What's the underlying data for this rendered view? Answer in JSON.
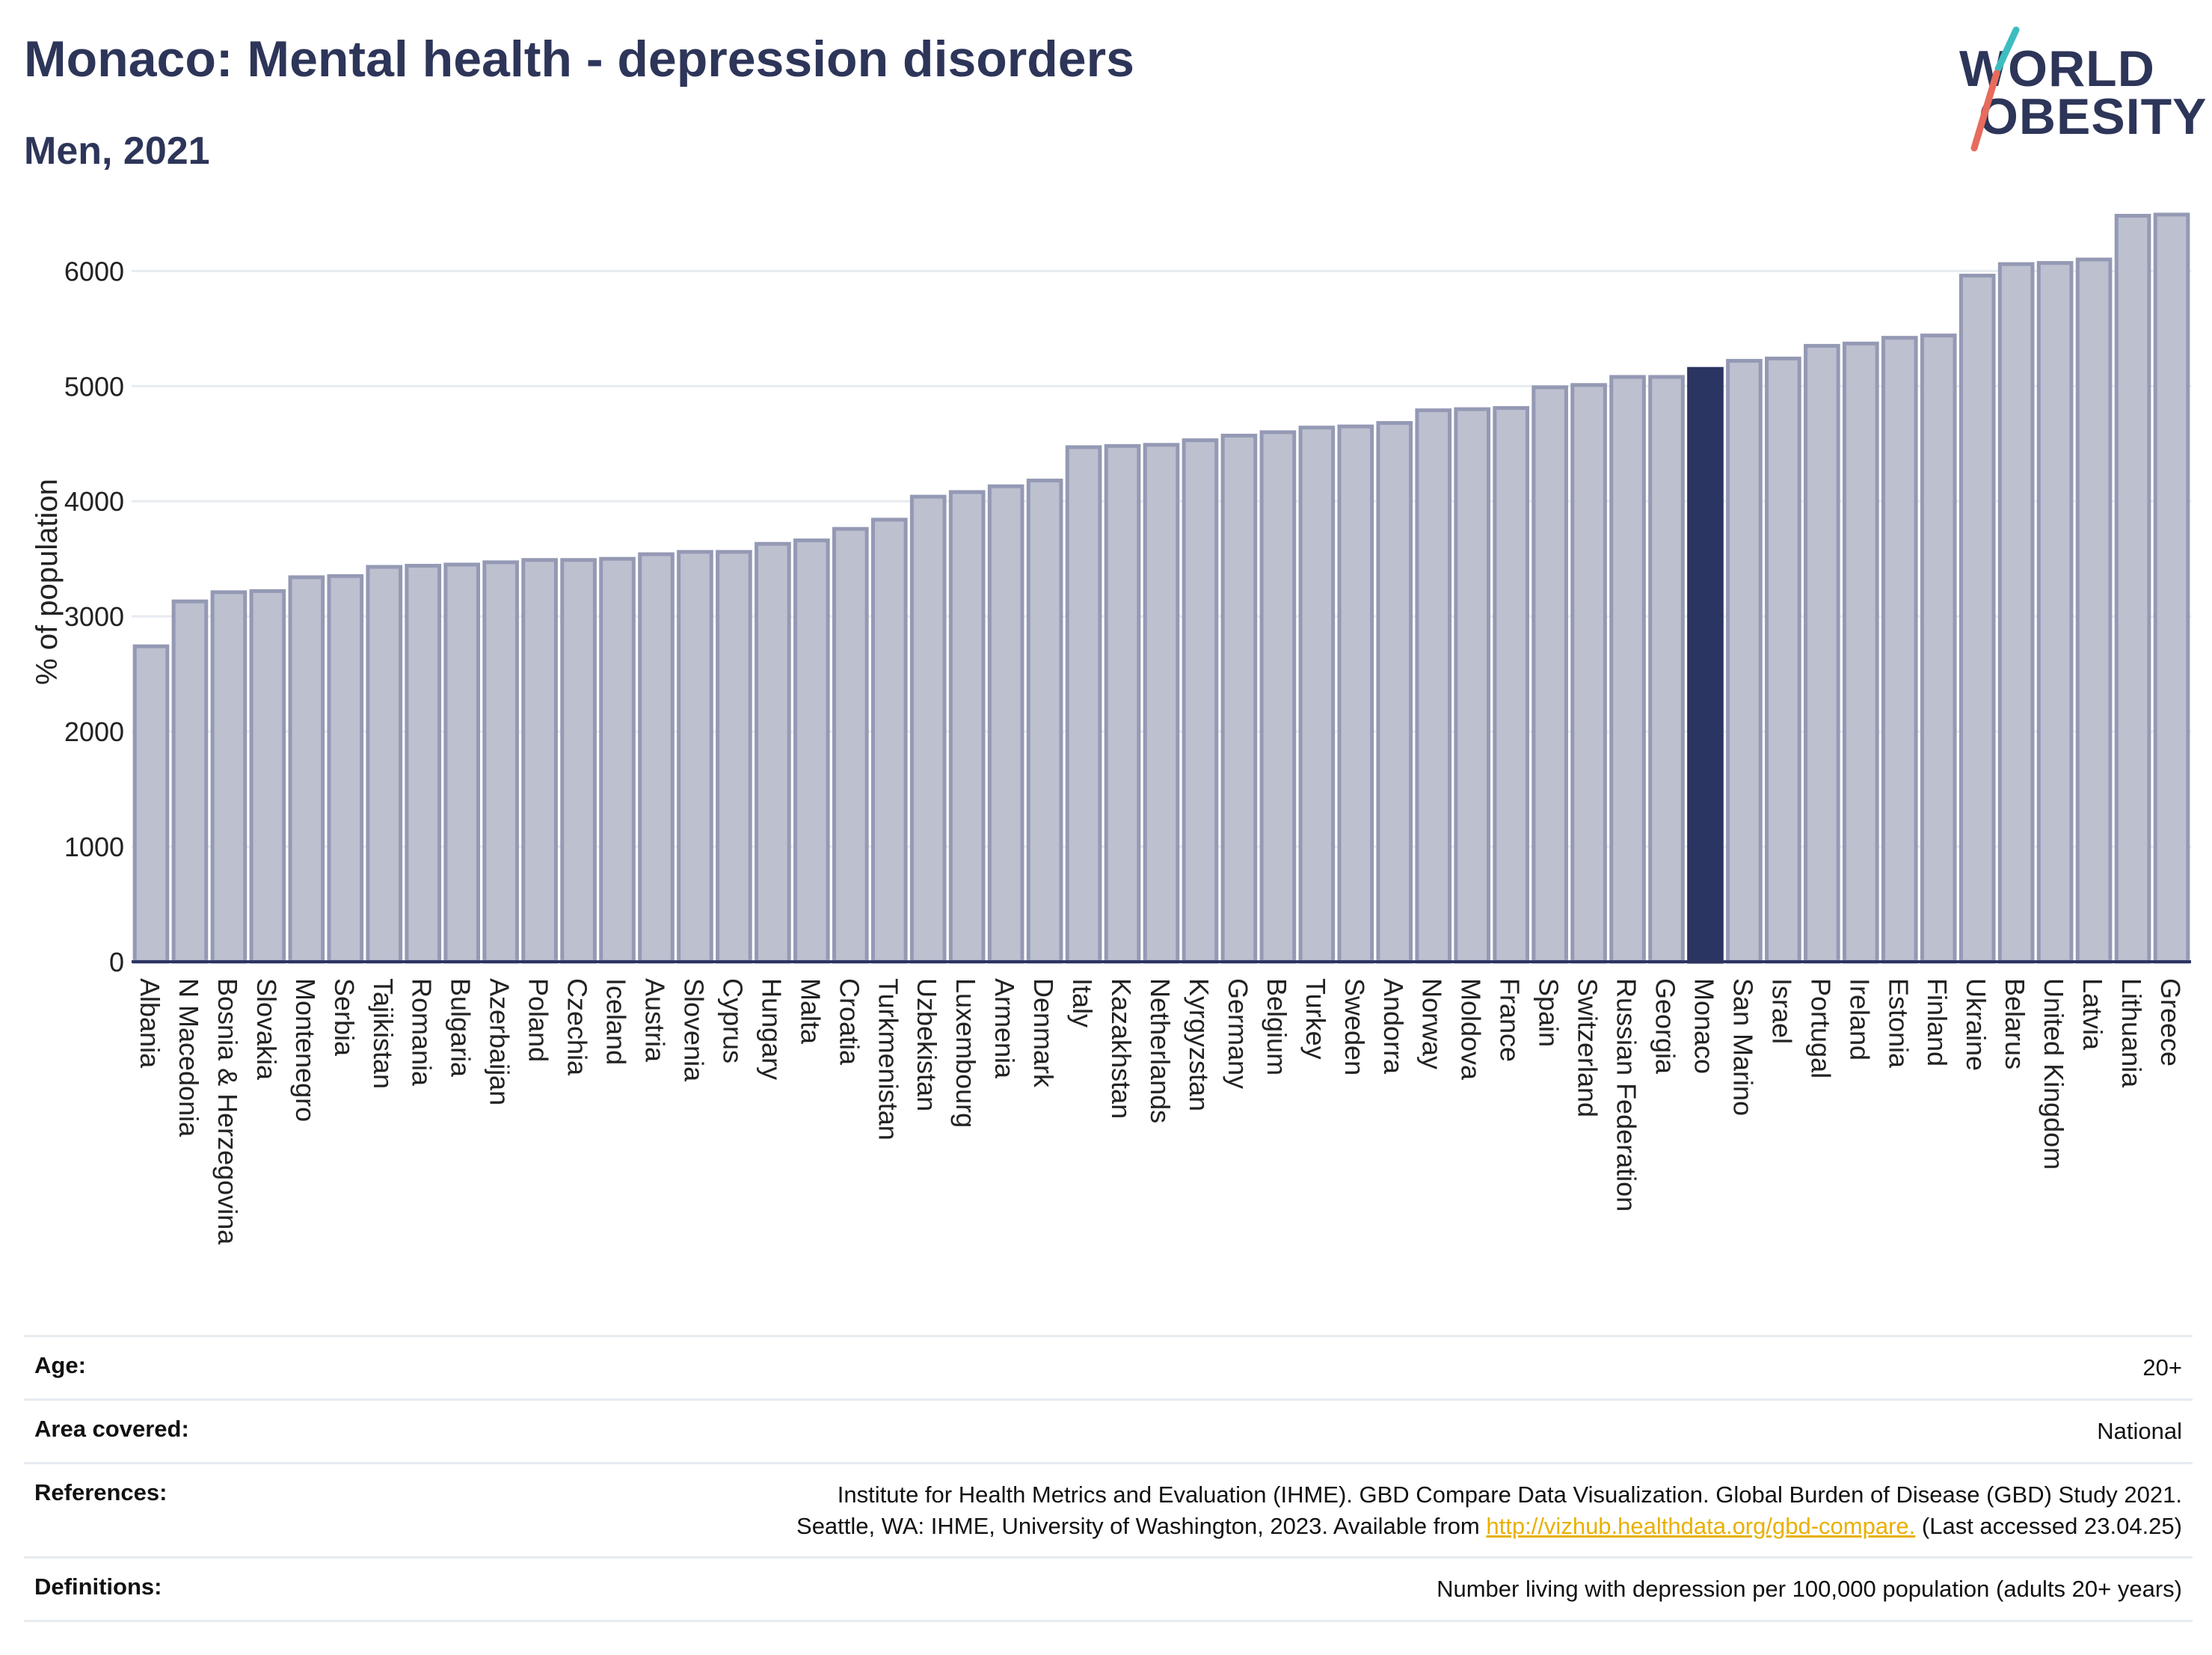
{
  "header": {
    "title": "Monaco: Mental health - depression disorders",
    "subtitle": "Men, 2021"
  },
  "logo": {
    "line1": "WORLD",
    "line2": "OBESITY"
  },
  "colors": {
    "bar": "#bcc0cf",
    "bar_stroke": "#9499b4",
    "highlight": "#2b3561",
    "grid": "#e6ebf0",
    "text": "#2d3559",
    "link": "#e8b000",
    "logo_teal": "#3dbdc0",
    "logo_coral": "#e86b5c"
  },
  "chart_data": {
    "type": "bar",
    "ylabel": "% of population",
    "xlabel": "",
    "ylim": [
      0,
      6600
    ],
    "yticks": [
      0,
      1000,
      2000,
      3000,
      4000,
      5000,
      6000
    ],
    "grid": true,
    "highlight": "Monaco",
    "categories": [
      "Albania",
      "N Macedonia",
      "Bosnia & Herzegovina",
      "Slovakia",
      "Montenegro",
      "Serbia",
      "Tajikistan",
      "Romania",
      "Bulgaria",
      "Azerbaijan",
      "Poland",
      "Czechia",
      "Iceland",
      "Austria",
      "Slovenia",
      "Cyprus",
      "Hungary",
      "Malta",
      "Croatia",
      "Turkmenistan",
      "Uzbekistan",
      "Luxembourg",
      "Armenia",
      "Denmark",
      "Italy",
      "Kazakhstan",
      "Netherlands",
      "Kyrgyzstan",
      "Germany",
      "Belgium",
      "Turkey",
      "Sweden",
      "Andorra",
      "Norway",
      "Moldova",
      "France",
      "Spain",
      "Switzerland",
      "Russian Federation",
      "Georgia",
      "Monaco",
      "San Marino",
      "Israel",
      "Portugal",
      "Ireland",
      "Estonia",
      "Finland",
      "Ukraine",
      "Belarus",
      "United Kingdom",
      "Latvia",
      "Lithuania",
      "Greece"
    ],
    "values": [
      2740,
      3130,
      3210,
      3220,
      3340,
      3350,
      3430,
      3440,
      3450,
      3470,
      3490,
      3490,
      3500,
      3540,
      3560,
      3560,
      3630,
      3660,
      3760,
      3840,
      4040,
      4080,
      4130,
      4180,
      4470,
      4480,
      4490,
      4530,
      4570,
      4600,
      4640,
      4650,
      4680,
      4790,
      4800,
      4810,
      4990,
      5010,
      5080,
      5080,
      5150,
      5220,
      5240,
      5350,
      5370,
      5420,
      5440,
      5960,
      6060,
      6070,
      6100,
      6480,
      6490
    ]
  },
  "info": {
    "age_label": "Age:",
    "age_value": "20+",
    "area_label": "Area covered:",
    "area_value": "National",
    "references_label": "References:",
    "references_line1": "Institute for Health Metrics and Evaluation (IHME). GBD Compare Data Visualization. Global Burden of Disease (GBD) Study 2021.",
    "references_line2_pre": "Seattle, WA: IHME, University of Washington, 2023. Available from",
    "references_link": "http://vizhub.healthdata.org/gbd-compare.",
    "references_line2_post": "(Last accessed 23.04.25)",
    "definitions_label": "Definitions:",
    "definitions_value": "Number living with depression per 100,000 population (adults 20+ years)"
  }
}
